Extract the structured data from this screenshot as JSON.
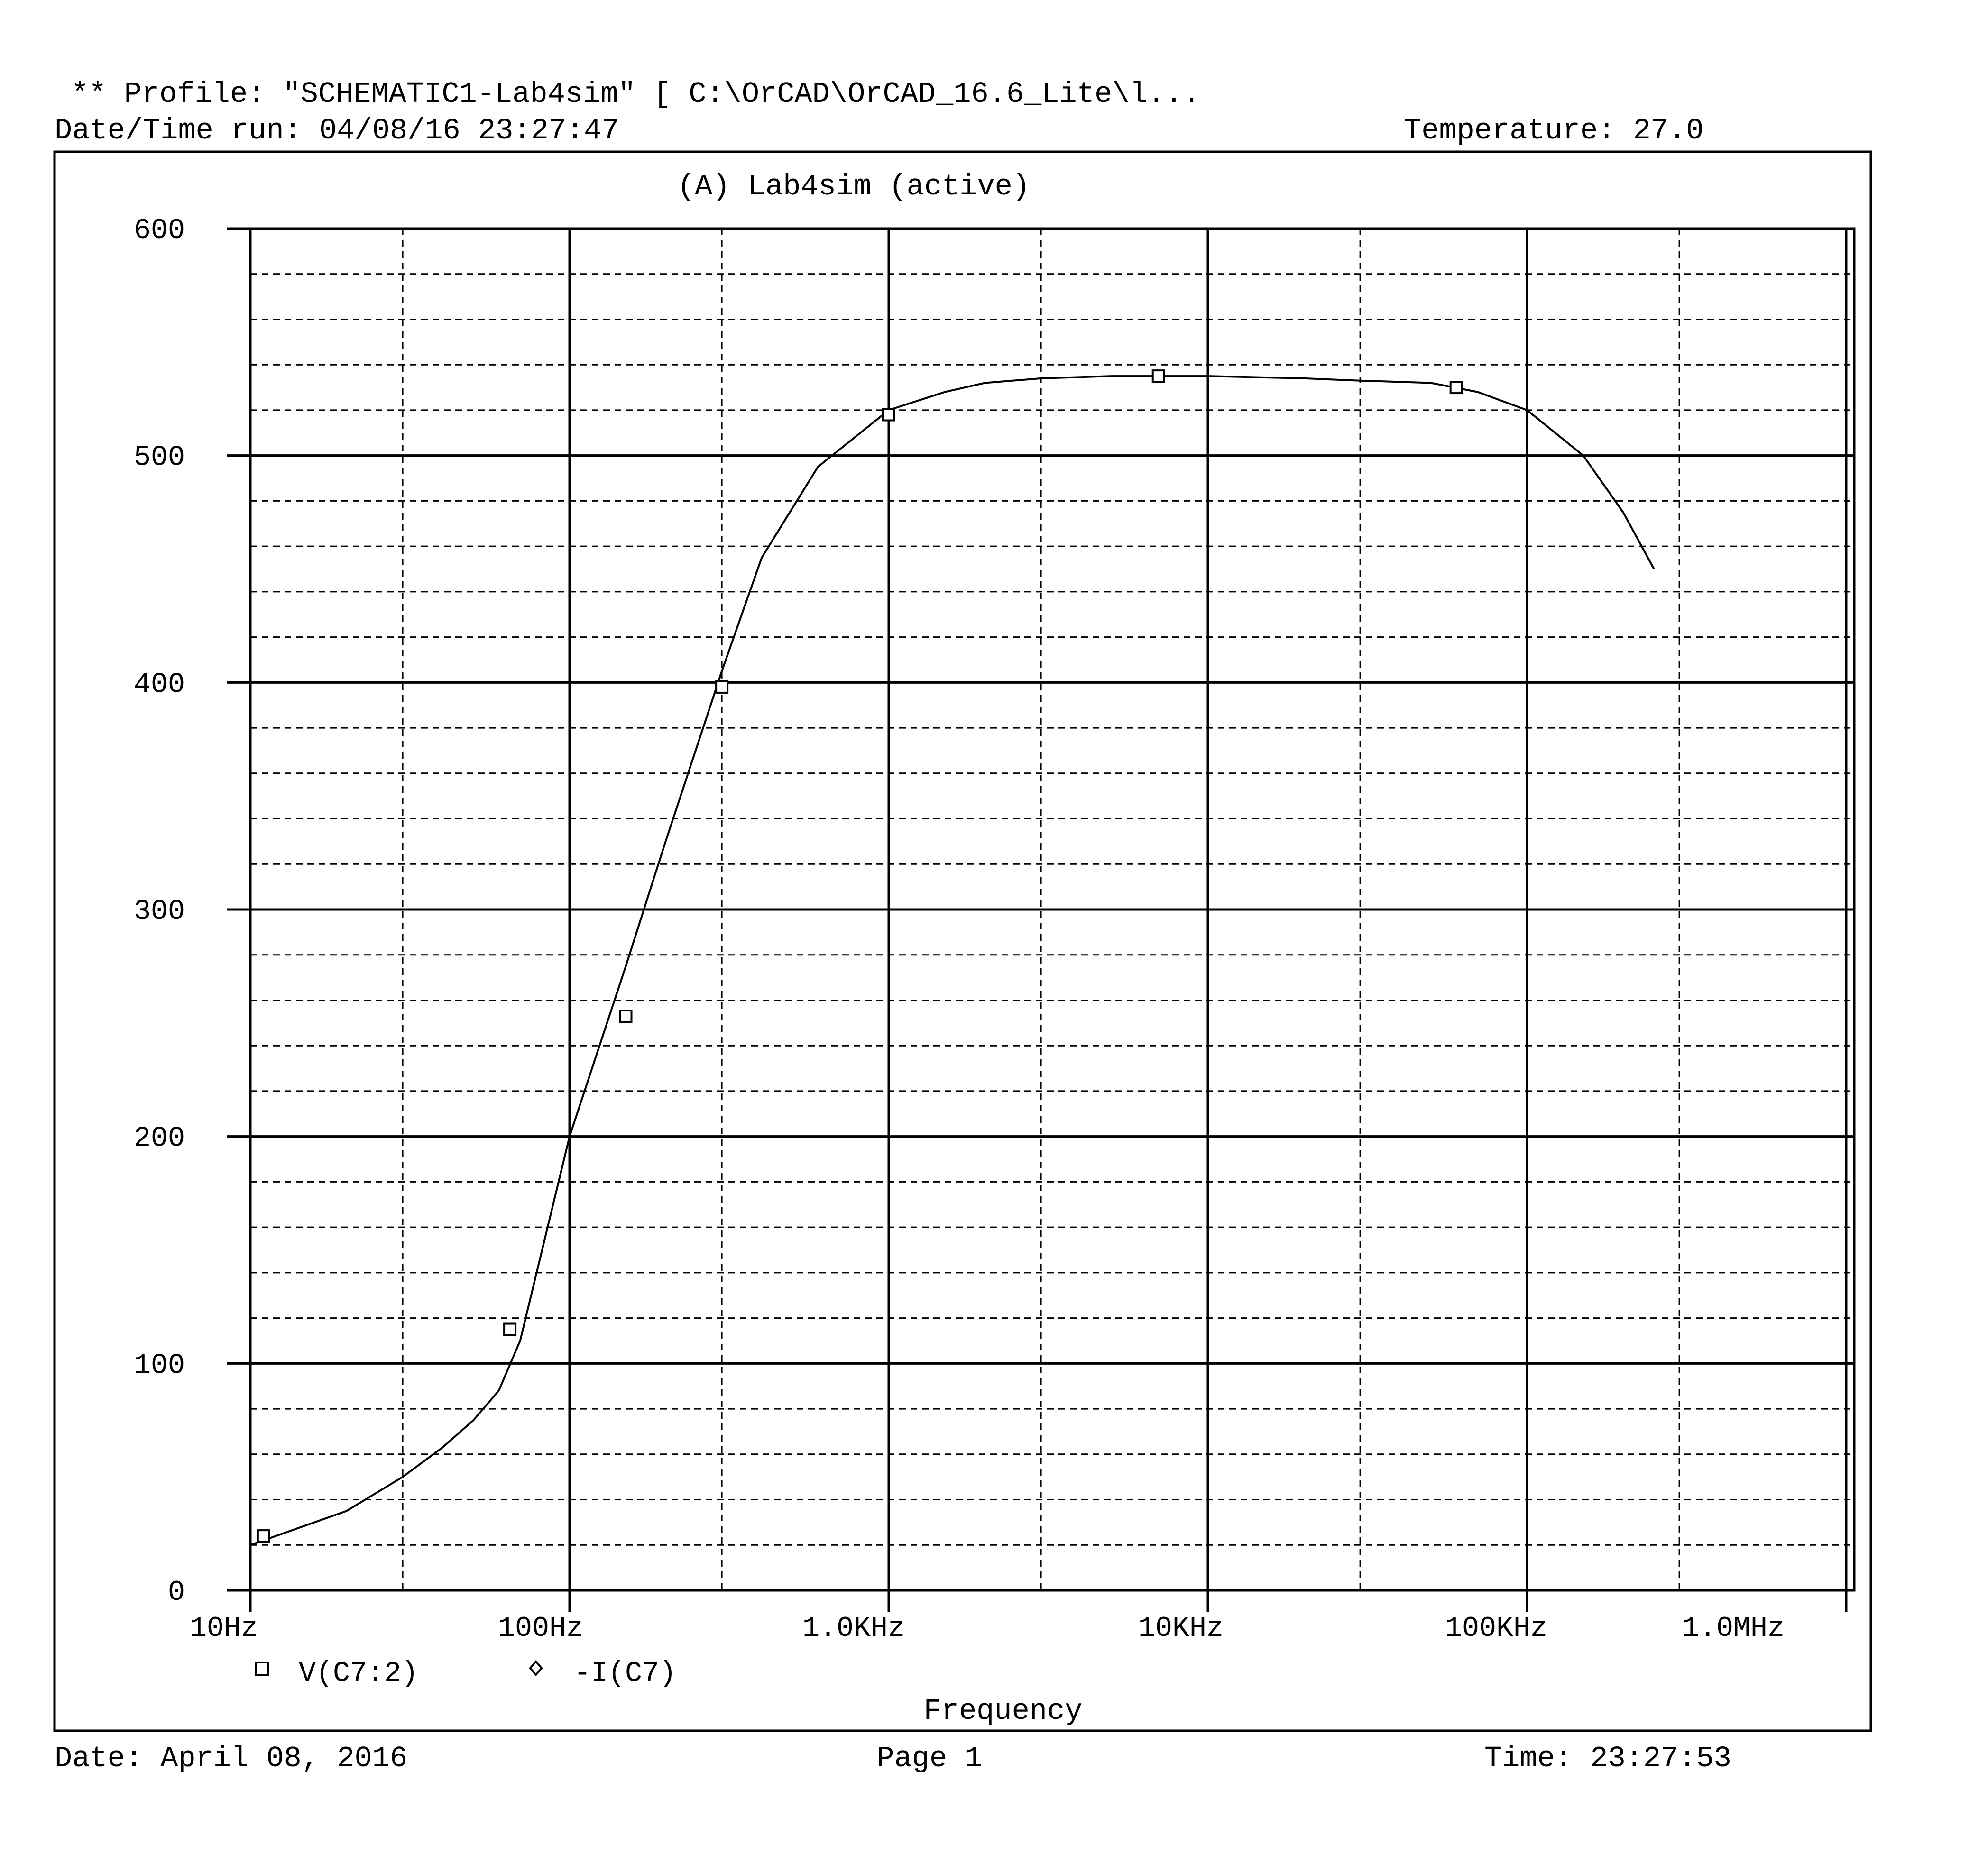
{
  "header": {
    "profile": "** Profile: \"SCHEMATIC1-Lab4sim\"  [ C:\\OrCAD\\OrCAD_16.6_Lite\\l...",
    "date_time_run": "Date/Time run: 04/08/16 23:27:47",
    "temperature": "Temperature: 27.0"
  },
  "footer": {
    "date": "Date: April 08, 2016",
    "page": "Page 1",
    "time": "Time: 23:27:53"
  },
  "colors": {
    "trace": "#000000",
    "grid": "#000000",
    "background": "#ffffff"
  },
  "chart_data": {
    "type": "line",
    "title": "(A) Lab4sim (active)",
    "xlabel": "Frequency",
    "ylabel": "",
    "x_scale": "log",
    "xlim": [
      10,
      3000000
    ],
    "ylim": [
      0,
      600
    ],
    "x_ticks": [
      {
        "value": 10,
        "label": "10Hz"
      },
      {
        "value": 100,
        "label": "100Hz"
      },
      {
        "value": 1000,
        "label": "1.0KHz"
      },
      {
        "value": 10000,
        "label": "10KHz"
      },
      {
        "value": 100000,
        "label": "100KHz"
      },
      {
        "value": 1000000,
        "label": "1.0MHz"
      }
    ],
    "y_ticks": [
      {
        "value": 0,
        "label": "0"
      },
      {
        "value": 100,
        "label": "100"
      },
      {
        "value": 200,
        "label": "200"
      },
      {
        "value": 300,
        "label": "300"
      },
      {
        "value": 400,
        "label": "400"
      },
      {
        "value": 500,
        "label": "500"
      },
      {
        "value": 600,
        "label": "600"
      }
    ],
    "grid": true,
    "legend": [
      {
        "marker": "square",
        "label": "V(C7:2)"
      },
      {
        "marker": "diamond",
        "label": "-I(C7)"
      }
    ],
    "series": [
      {
        "name": "V(C7:2)",
        "marker": "square",
        "x": [
          10,
          20,
          30,
          40,
          50,
          60,
          70,
          100,
          150,
          200,
          300,
          400,
          600,
          1000,
          1500,
          2000,
          3000,
          5000,
          7000,
          10000,
          20000,
          30000,
          50000,
          70000,
          100000,
          150000,
          200000,
          250000
        ],
        "y": [
          20,
          35,
          50,
          63,
          75,
          88,
          110,
          200,
          275,
          330,
          405,
          455,
          495,
          520,
          528,
          532,
          534,
          535,
          535,
          535,
          534,
          533,
          532,
          528,
          520,
          500,
          475,
          450
        ],
        "markers": [
          {
            "x": 11,
            "y": 24
          },
          {
            "x": 65,
            "y": 115
          },
          {
            "x": 150,
            "y": 253
          },
          {
            "x": 300,
            "y": 398
          },
          {
            "x": 1000,
            "y": 518
          },
          {
            "x": 7000,
            "y": 535
          },
          {
            "x": 60000,
            "y": 530
          }
        ]
      }
    ]
  }
}
